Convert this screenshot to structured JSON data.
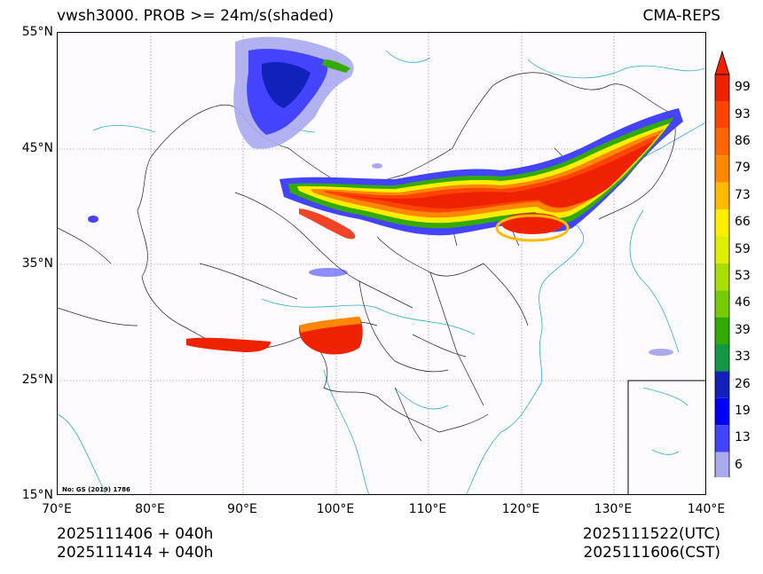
{
  "header": {
    "title_left": "vwsh3000. PROB >= 24m/s(shaded)",
    "title_right": "CMA-REPS"
  },
  "map": {
    "lat_labels": [
      "55°N",
      "45°N",
      "35°N",
      "25°N",
      "15°N"
    ],
    "lon_labels": [
      "70°E",
      "80°E",
      "90°E",
      "100°E",
      "110°E",
      "120°E",
      "130°E",
      "140°E"
    ],
    "approval_note": "No: GS (2019) 1786"
  },
  "footer": {
    "init_utc": "2025111406  +  040h",
    "init_cst": "2025111414  +  040h",
    "valid_utc": "2025111522(UTC)",
    "valid_cst": "2025111606(CST)"
  },
  "colorbar": {
    "labels": [
      "99",
      "93",
      "86",
      "79",
      "73",
      "66",
      "59",
      "53",
      "46",
      "39",
      "33",
      "26",
      "19",
      "13",
      "6"
    ],
    "colors": [
      "#ee2200",
      "#ff4400",
      "#ff6600",
      "#ff8800",
      "#ffbb00",
      "#ffee00",
      "#ddee00",
      "#aadd00",
      "#77cc00",
      "#33aa00",
      "#109940",
      "#1122bb",
      "#0000ff",
      "#4444ff",
      "#aaaaee"
    ]
  }
}
